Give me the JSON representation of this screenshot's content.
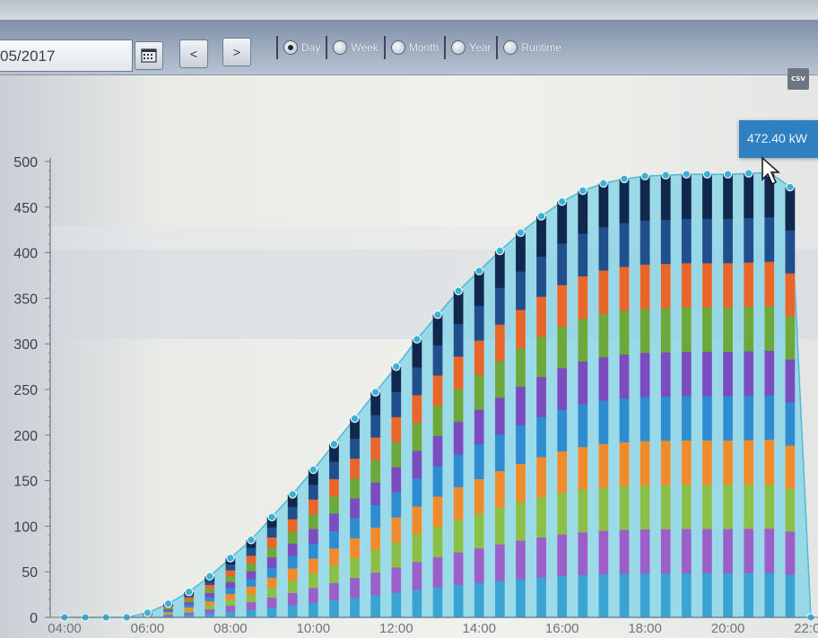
{
  "toolbar": {
    "date_value": "05/2017",
    "calendar_icon": "calendar-icon",
    "prev_label": "<",
    "next_label": ">",
    "periods": [
      {
        "label": "Day",
        "selected": true
      },
      {
        "label": "Week",
        "selected": false
      },
      {
        "label": "Month",
        "selected": false
      },
      {
        "label": "Year",
        "selected": false
      },
      {
        "label": "Runtime",
        "selected": false
      }
    ],
    "csv_label": "CSV"
  },
  "tooltip": {
    "text": "472.40 kW"
  },
  "colors": {
    "area": "#7fd3e8",
    "area_stroke": "#4fb9d8",
    "segments": [
      "#3aa3d1",
      "#9b5fc9",
      "#8ac04a",
      "#ef8b2c",
      "#2d8dd0",
      "#7a4cc0",
      "#6ca83c",
      "#e8662a",
      "#1f4f8c",
      "#11284e"
    ]
  },
  "chart_data": {
    "type": "bar",
    "title": "",
    "xlabel": "",
    "ylabel": "",
    "ylim": [
      0,
      500
    ],
    "y_ticks": [
      "0",
      "50",
      "100",
      "150",
      "200",
      "250",
      "300",
      "350",
      "400",
      "450",
      "500"
    ],
    "x_ticks": [
      "04:00",
      "06:00",
      "08:00",
      "10:00",
      "12:00",
      "14:00",
      "16:00",
      "18:00",
      "20:00",
      "22:00"
    ],
    "x": [
      "04:00",
      "04:30",
      "05:00",
      "05:30",
      "06:00",
      "06:30",
      "07:00",
      "07:30",
      "08:00",
      "08:30",
      "09:00",
      "09:30",
      "10:00",
      "10:30",
      "11:00",
      "11:30",
      "12:00",
      "12:30",
      "13:00",
      "13:30",
      "14:00",
      "14:30",
      "15:00",
      "15:30",
      "16:00",
      "16:30",
      "17:00",
      "17:30",
      "18:00",
      "18:30",
      "19:00",
      "19:30",
      "20:00",
      "20:30",
      "21:00",
      "21:30",
      "22:00"
    ],
    "values": [
      0,
      0,
      0,
      0,
      5,
      15,
      28,
      45,
      65,
      85,
      110,
      135,
      162,
      190,
      218,
      247,
      275,
      305,
      332,
      358,
      380,
      402,
      422,
      440,
      456,
      468,
      476,
      481,
      484,
      485,
      486,
      486,
      486,
      487,
      488,
      472,
      0
    ],
    "grid": false,
    "legend": "none"
  }
}
